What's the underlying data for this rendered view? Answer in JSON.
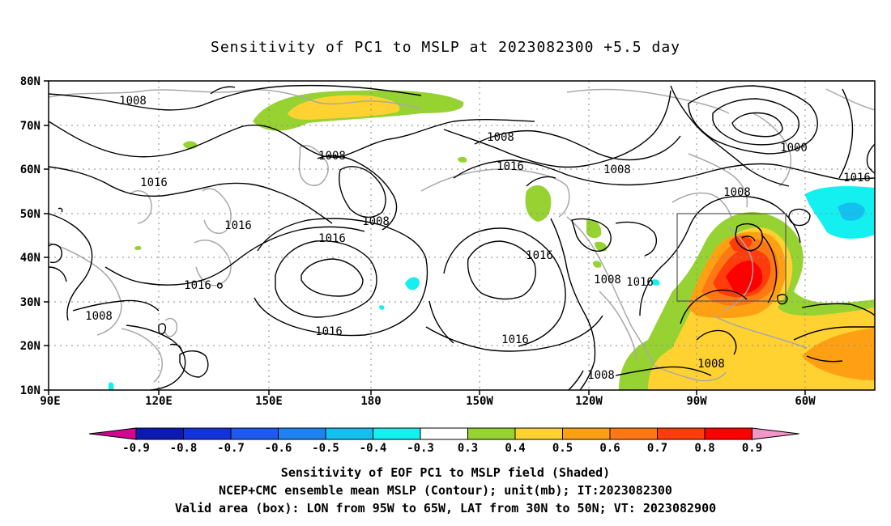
{
  "title": "Sensitivity of PC1 to MSLP at 2023082300 +5.5 day",
  "map": {
    "lon_labels": [
      "90E",
      "120E",
      "150E",
      "180",
      "150W",
      "120W",
      "90W",
      "60W"
    ],
    "lat_labels": [
      "80N",
      "70N",
      "60N",
      "50N",
      "40N",
      "30N",
      "20N",
      "10N"
    ],
    "contour_labels": [
      "1008",
      "1008",
      "1016",
      "1016",
      "1016",
      "1008",
      "1008",
      "1016",
      "1016",
      "1008",
      "1016",
      "1016",
      "1008",
      "1000",
      "1008",
      "1016",
      "1008",
      "1016",
      "1016",
      "1008",
      "1008"
    ],
    "box_label": "valid-area"
  },
  "colorbar": {
    "labels": [
      "-0.9",
      "-0.8",
      "-0.7",
      "-0.6",
      "-0.5",
      "-0.4",
      "-0.3",
      "0.3",
      "0.4",
      "0.5",
      "0.6",
      "0.7",
      "0.8",
      "0.9"
    ],
    "colors": [
      "#d0078f",
      "#0c1ab0",
      "#1432dc",
      "#1e5af0",
      "#1e82f0",
      "#14c0f0",
      "#14f0f0",
      "#ffffff",
      "#96d232",
      "#ffd232",
      "#ffa014",
      "#ff7814",
      "#ff3c0a",
      "#ff0000",
      "#f096c8"
    ]
  },
  "captions": {
    "line1": "Sensitivity of EOF PC1 to MSLP field (Shaded)",
    "line2": "NCEP+CMC ensemble mean MSLP (Contour); unit(mb); IT:2023082300",
    "line3": "Valid area (box): LON from 95W to 65W, LAT from 30N to 50N; VT: 2023082900"
  }
}
